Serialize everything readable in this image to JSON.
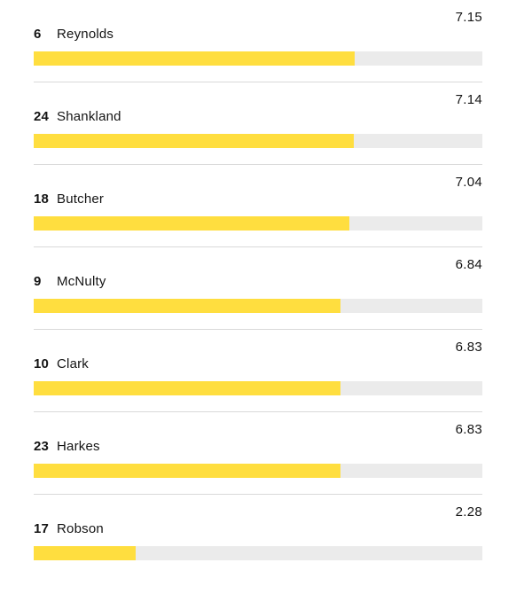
{
  "rating_max": 10,
  "colors": {
    "bar_fill": "#ffde3f",
    "bar_track": "#ebebeb",
    "divider": "#d9d9d9",
    "text": "#141414"
  },
  "players": [
    {
      "number": "6",
      "name": "Reynolds",
      "rating": "7.15",
      "rating_value": 7.15
    },
    {
      "number": "24",
      "name": "Shankland",
      "rating": "7.14",
      "rating_value": 7.14
    },
    {
      "number": "18",
      "name": "Butcher",
      "rating": "7.04",
      "rating_value": 7.04
    },
    {
      "number": "9",
      "name": "McNulty",
      "rating": "6.84",
      "rating_value": 6.84
    },
    {
      "number": "10",
      "name": "Clark",
      "rating": "6.83",
      "rating_value": 6.83
    },
    {
      "number": "23",
      "name": "Harkes",
      "rating": "6.83",
      "rating_value": 6.83
    },
    {
      "number": "17",
      "name": "Robson",
      "rating": "2.28",
      "rating_value": 2.28
    }
  ]
}
